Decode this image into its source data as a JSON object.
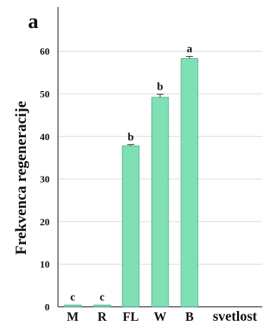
{
  "chart_data": {
    "type": "bar",
    "panel_label": "a",
    "ylabel": "Frekvenca regeneracije",
    "xlabel": "svetlost",
    "categories": [
      "M",
      "R",
      "FL",
      "W",
      "B"
    ],
    "values": [
      0.4,
      0.4,
      37.8,
      49.2,
      58.3
    ],
    "errors": [
      0.1,
      0.1,
      0.3,
      0.7,
      0.5
    ],
    "significance": [
      "c",
      "c",
      "b",
      "b",
      "a"
    ],
    "ylim": [
      0,
      70
    ],
    "yticks": [
      0,
      10,
      20,
      30,
      40,
      50,
      60
    ],
    "grid": true,
    "bar_color": "#7fe0b4",
    "bar_edge_color": "#3aa57a"
  }
}
